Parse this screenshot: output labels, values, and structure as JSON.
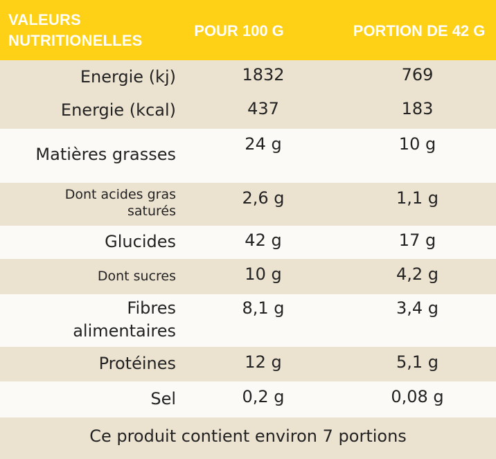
{
  "header": {
    "col0": "VALEURS NUTRITIONELLES",
    "col1": "POUR 100 G",
    "col2": "PORTION DE 42 G"
  },
  "rows": [
    {
      "label": "Energie (kj)",
      "per100": "1832",
      "portion": "769"
    },
    {
      "label": "Energie (kcal)",
      "per100": "437",
      "portion": "183"
    },
    {
      "label": "Matières grasses",
      "per100": "24 g",
      "portion": "10 g"
    },
    {
      "label": "Dont acides gras saturés",
      "per100": "2,6 g",
      "portion": "1,1 g"
    },
    {
      "label": "Glucides",
      "per100": "42 g",
      "portion": "17 g"
    },
    {
      "label": "Dont sucres",
      "per100": "10 g",
      "portion": "4,2 g"
    },
    {
      "label": "Fibres alimentaires",
      "per100": "8,1 g",
      "portion": "3,4 g"
    },
    {
      "label": "Protéines",
      "per100": "12 g",
      "portion": "5,1 g"
    },
    {
      "label": "Sel",
      "per100": "0,2 g",
      "portion": "0,08 g"
    }
  ],
  "footer": "Ce produit contient environ 7 portions",
  "colors": {
    "header": "#fed016",
    "beige": "#ece2d0",
    "white": "#fbfaf6"
  }
}
